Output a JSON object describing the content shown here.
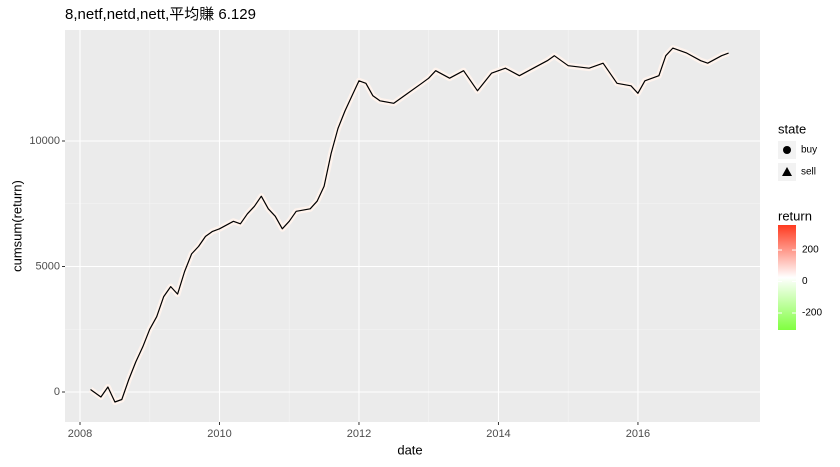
{
  "chart_data": {
    "type": "line",
    "title": "8,netf,netd,nett,平均賺 6.129",
    "xlabel": "date",
    "ylabel": "cumsum(return)",
    "xlim": [
      2007.785,
      2017.75
    ],
    "xticks": [
      2008,
      2010,
      2012,
      2014,
      2016
    ],
    "ylim": [
      -1195,
      14422
    ],
    "yticks": [
      0,
      5000,
      10000
    ],
    "grid": true,
    "series": [
      {
        "name": "cumsum(return)",
        "color": "#000000",
        "x": [
          2008.15,
          2008.3,
          2008.4,
          2008.5,
          2008.6,
          2008.7,
          2008.8,
          2008.9,
          2009.0,
          2009.1,
          2009.2,
          2009.3,
          2009.4,
          2009.5,
          2009.6,
          2009.7,
          2009.8,
          2009.9,
          2010.0,
          2010.2,
          2010.3,
          2010.4,
          2010.5,
          2010.6,
          2010.7,
          2010.8,
          2010.9,
          2011.0,
          2011.1,
          2011.3,
          2011.4,
          2011.5,
          2011.6,
          2011.7,
          2011.8,
          2011.9,
          2012.0,
          2012.1,
          2012.2,
          2012.3,
          2012.5,
          2012.7,
          2012.9,
          2013.0,
          2013.1,
          2013.3,
          2013.5,
          2013.7,
          2013.9,
          2014.1,
          2014.3,
          2014.5,
          2014.7,
          2014.8,
          2015.0,
          2015.3,
          2015.5,
          2015.7,
          2015.9,
          2016.0,
          2016.1,
          2016.3,
          2016.4,
          2016.5,
          2016.7,
          2016.9,
          2017.0,
          2017.2,
          2017.3
        ],
        "values": [
          100,
          -200,
          200,
          -400,
          -300,
          500,
          1200,
          1800,
          2500,
          3000,
          3800,
          4200,
          3900,
          4800,
          5500,
          5800,
          6200,
          6400,
          6500,
          6800,
          6700,
          7100,
          7400,
          7800,
          7300,
          7000,
          6500,
          6800,
          7200,
          7300,
          7600,
          8200,
          9500,
          10500,
          11200,
          11800,
          12400,
          12300,
          11800,
          11600,
          11500,
          11900,
          12300,
          12500,
          12800,
          12500,
          12800,
          12000,
          12700,
          12900,
          12600,
          12900,
          13200,
          13400,
          13000,
          12900,
          13100,
          12300,
          12200,
          11900,
          12400,
          12600,
          13400,
          13700,
          13500,
          13200,
          13100,
          13400,
          13500
        ]
      }
    ],
    "legend_state": {
      "title": "state",
      "items": [
        "buy",
        "sell"
      ]
    },
    "legend_return": {
      "title": "return",
      "lim": [
        -308,
        359
      ],
      "ticks": [
        200,
        0,
        -200
      ],
      "colors": [
        "#80ff40",
        "#ffffff",
        "#ff3a1f"
      ]
    }
  }
}
